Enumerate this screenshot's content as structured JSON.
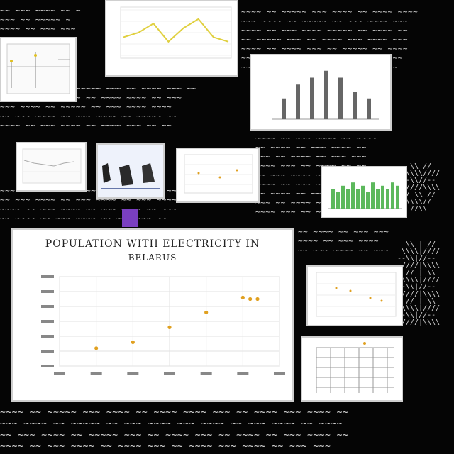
{
  "main_chart": {
    "title_line1": "POPULATION WITH ELECTRICITY IN",
    "title_line2": "BELARUS",
    "chart_data": {
      "type": "scatter",
      "title": "POPULATION WITH ELECTRICITY IN BELARUS",
      "points": [
        {
          "x": 1,
          "y": 1.2
        },
        {
          "x": 2,
          "y": 1.6
        },
        {
          "x": 3,
          "y": 2.6
        },
        {
          "x": 4,
          "y": 3.6
        },
        {
          "x": 5,
          "y": 4.6
        },
        {
          "x": 5.2,
          "y": 4.5
        },
        {
          "x": 5.4,
          "y": 4.5
        }
      ],
      "xlim": [
        0,
        6
      ],
      "ylim": [
        0,
        6
      ],
      "grid": true,
      "point_color": "#e0a020"
    }
  },
  "thumb_bar": {
    "chart_data": {
      "type": "bar",
      "values": [
        3,
        5,
        6,
        7,
        6,
        4,
        3
      ],
      "ylim": [
        0,
        8
      ]
    }
  },
  "thumb_green": {
    "chart_data": {
      "type": "bar",
      "values": [
        6,
        5,
        7,
        6,
        8,
        6,
        7,
        5,
        8,
        6,
        7,
        6,
        8,
        7
      ],
      "ylim": [
        0,
        10
      ],
      "bar_color": "#5cb85c"
    }
  },
  "thumb_line": {
    "chart_data": {
      "type": "line",
      "values": [
        4,
        5,
        7,
        3,
        6,
        8,
        4,
        3
      ],
      "ylim": [
        0,
        10
      ],
      "line_color": "#e0d040"
    }
  },
  "colors": {
    "background": "#050505",
    "accent_purple": "#7a3fc0"
  }
}
